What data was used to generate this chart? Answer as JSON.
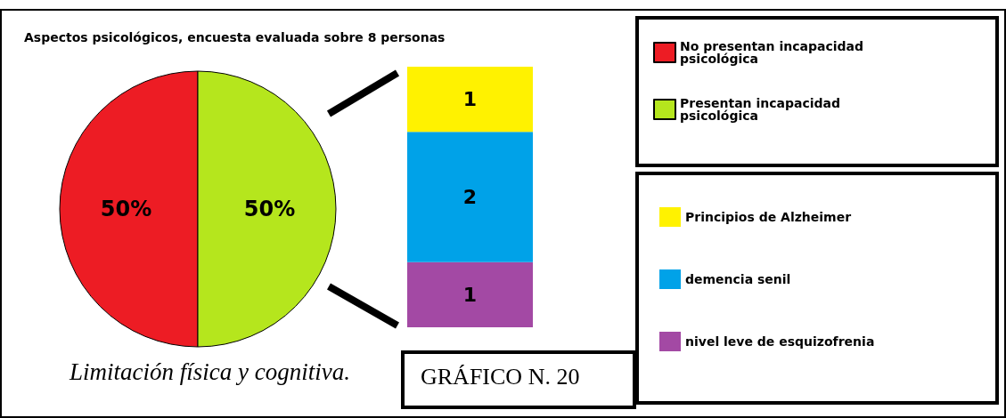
{
  "chart_data": [
    {
      "type": "pie",
      "title": "Aspectos psicológicos, encuesta evaluada sobre 8 personas",
      "categories": [
        "No presentan incapacidad psicológica",
        "Presentan incapacidad psicológica"
      ],
      "values": [
        50,
        50
      ],
      "colors": [
        "#ed1c24",
        "#b5e61d"
      ],
      "value_labels": [
        "50%",
        "50%"
      ],
      "legend": "top right",
      "annotations": [
        "Limitación física y cognitiva.",
        "GRÁFICO N. 20"
      ]
    },
    {
      "type": "bar",
      "stacked": true,
      "categories": [
        null
      ],
      "data_labels": true,
      "legend": "right",
      "series": [
        {
          "name": "nivel leve de esquizofrenia",
          "color": "#a349a4",
          "values": [
            1
          ]
        },
        {
          "name": "demencia senil",
          "color": "#00a2e8",
          "values": [
            2
          ]
        },
        {
          "name": "Principios de Alzheimer",
          "color": "#fff200",
          "values": [
            1
          ]
        }
      ]
    }
  ]
}
